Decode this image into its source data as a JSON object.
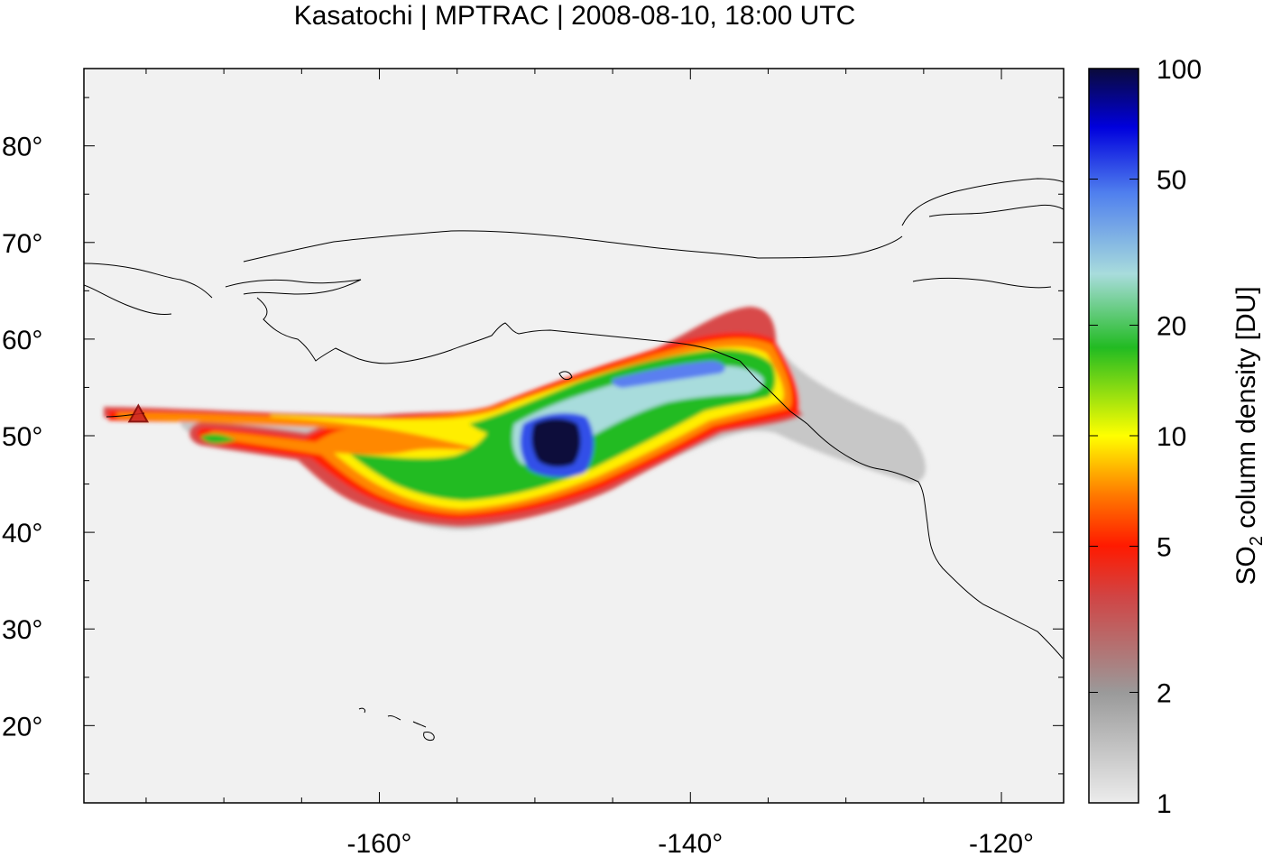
{
  "figure": {
    "title": "Kasatochi | MPTRAC | 2008-08-10, 18:00 UTC"
  },
  "chart_data": {
    "type": "heatmap",
    "title": "Kasatochi | MPTRAC | 2008-08-10, 18:00 UTC",
    "xlabel": "",
    "ylabel": "",
    "xlim": [
      -179,
      -116
    ],
    "ylim": [
      12,
      88
    ],
    "x_ticks": [
      {
        "value": -160,
        "label": "-160°"
      },
      {
        "value": -140,
        "label": "-140°"
      },
      {
        "value": -120,
        "label": "-120°"
      }
    ],
    "y_ticks": [
      {
        "value": 20,
        "label": "20°"
      },
      {
        "value": 30,
        "label": "30°"
      },
      {
        "value": 40,
        "label": "40°"
      },
      {
        "value": 50,
        "label": "50°"
      },
      {
        "value": 60,
        "label": "60°"
      },
      {
        "value": 70,
        "label": "70°"
      },
      {
        "value": 80,
        "label": "80°"
      }
    ],
    "colorbar": {
      "label": "SO₂ column density [DU]",
      "label_main": "SO",
      "label_sub": "2",
      "label_rest": " column density [DU]",
      "scale": "log",
      "range": [
        1,
        100
      ],
      "ticks": [
        {
          "value": 1,
          "label": "1"
        },
        {
          "value": 2,
          "label": "2"
        },
        {
          "value": 5,
          "label": "5"
        },
        {
          "value": 10,
          "label": "10"
        },
        {
          "value": 20,
          "label": "20"
        },
        {
          "value": 50,
          "label": "50"
        },
        {
          "value": 100,
          "label": "100"
        }
      ],
      "colors": [
        "#e6e6e6",
        "#9a9a9a",
        "#d04545",
        "#ff1a00",
        "#ff7a00",
        "#ffff00",
        "#22bb22",
        "#a8dcdc",
        "#5080ee",
        "#0000dd",
        "#0a0a3a"
      ]
    },
    "source_marker": {
      "name": "Kasatochi",
      "lon": -175.5,
      "lat": 52.2,
      "color": "#cc2222"
    },
    "plume_path": [
      {
        "lon": -175.5,
        "lat": 52.2,
        "value": 5
      },
      {
        "lon": -168,
        "lat": 51.8,
        "value": 6
      },
      {
        "lon": -160,
        "lat": 51.3,
        "value": 7
      },
      {
        "lon": -155,
        "lat": 50.8,
        "value": 8
      },
      {
        "lon": -152,
        "lat": 48.5,
        "value": 10
      },
      {
        "lon": -148,
        "lat": 47.2,
        "value": 100
      },
      {
        "lon": -142,
        "lat": 53.5,
        "value": 25
      },
      {
        "lon": -138,
        "lat": 55.3,
        "value": 40
      },
      {
        "lon": -134,
        "lat": 55.5,
        "value": 20
      },
      {
        "lon": -136,
        "lat": 59.5,
        "value": 4
      },
      {
        "lon": -170,
        "lat": 49.2,
        "value": 14
      },
      {
        "lon": -161,
        "lat": 45.5,
        "value": 14
      },
      {
        "lon": -155,
        "lat": 42.2,
        "value": 12
      },
      {
        "lon": -148,
        "lat": 43.8,
        "value": 9
      }
    ],
    "colors": {
      "background": "#f1f1f1",
      "coastline": "#000000"
    }
  }
}
